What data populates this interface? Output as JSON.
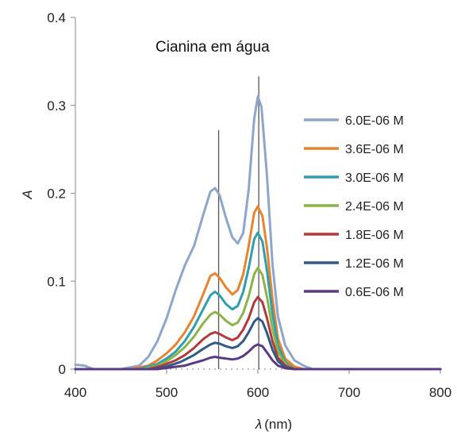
{
  "chart_data": {
    "type": "line",
    "title": "Cianina em água",
    "xlabel": {
      "symbol": "λ",
      "unit": "(nm)"
    },
    "ylabel": "A",
    "xlim": [
      400,
      800
    ],
    "ylim": [
      0,
      0.4
    ],
    "x_ticks": [
      "400",
      "500",
      "600",
      "700",
      "800"
    ],
    "y_ticks": [
      "0",
      "0.1",
      "0.2",
      "0.3",
      "0.4"
    ],
    "grid": false,
    "legend_position": "right",
    "reference_lines": [
      {
        "x": 557,
        "y_top": 0.272
      },
      {
        "x": 601,
        "y_top": 0.333
      }
    ],
    "series": [
      {
        "name": "6.0E-06 M",
        "color": "#8ea6cc",
        "points": [
          [
            400,
            0.005
          ],
          [
            410,
            0.004
          ],
          [
            420,
            0.0
          ],
          [
            450,
            0.0
          ],
          [
            470,
            0.004
          ],
          [
            480,
            0.014
          ],
          [
            490,
            0.032
          ],
          [
            500,
            0.058
          ],
          [
            510,
            0.09
          ],
          [
            520,
            0.118
          ],
          [
            530,
            0.14
          ],
          [
            540,
            0.175
          ],
          [
            548,
            0.202
          ],
          [
            553,
            0.206
          ],
          [
            558,
            0.198
          ],
          [
            565,
            0.172
          ],
          [
            572,
            0.15
          ],
          [
            578,
            0.143
          ],
          [
            584,
            0.155
          ],
          [
            590,
            0.205
          ],
          [
            596,
            0.285
          ],
          [
            600,
            0.31
          ],
          [
            604,
            0.298
          ],
          [
            610,
            0.22
          ],
          [
            616,
            0.12
          ],
          [
            622,
            0.06
          ],
          [
            630,
            0.027
          ],
          [
            640,
            0.01
          ],
          [
            650,
            0.004
          ],
          [
            660,
            0.0
          ],
          [
            800,
            0.0
          ]
        ]
      },
      {
        "name": "3.6E-06 M",
        "color": "#e8832e",
        "points": [
          [
            400,
            0.0
          ],
          [
            460,
            0.0
          ],
          [
            480,
            0.004
          ],
          [
            490,
            0.01
          ],
          [
            500,
            0.018
          ],
          [
            510,
            0.028
          ],
          [
            520,
            0.042
          ],
          [
            530,
            0.06
          ],
          [
            540,
            0.085
          ],
          [
            548,
            0.106
          ],
          [
            553,
            0.109
          ],
          [
            558,
            0.104
          ],
          [
            565,
            0.093
          ],
          [
            572,
            0.085
          ],
          [
            578,
            0.09
          ],
          [
            584,
            0.108
          ],
          [
            590,
            0.14
          ],
          [
            596,
            0.178
          ],
          [
            600,
            0.185
          ],
          [
            605,
            0.174
          ],
          [
            610,
            0.138
          ],
          [
            616,
            0.08
          ],
          [
            622,
            0.035
          ],
          [
            630,
            0.012
          ],
          [
            640,
            0.003
          ],
          [
            650,
            0.0
          ],
          [
            800,
            0.0
          ]
        ]
      },
      {
        "name": "3.0E-06 M",
        "color": "#2e9faf",
        "points": [
          [
            400,
            0.0
          ],
          [
            470,
            0.0
          ],
          [
            490,
            0.006
          ],
          [
            500,
            0.012
          ],
          [
            510,
            0.02
          ],
          [
            520,
            0.032
          ],
          [
            530,
            0.048
          ],
          [
            540,
            0.068
          ],
          [
            548,
            0.084
          ],
          [
            553,
            0.088
          ],
          [
            558,
            0.084
          ],
          [
            565,
            0.074
          ],
          [
            572,
            0.068
          ],
          [
            578,
            0.072
          ],
          [
            584,
            0.088
          ],
          [
            590,
            0.115
          ],
          [
            596,
            0.148
          ],
          [
            600,
            0.155
          ],
          [
            605,
            0.145
          ],
          [
            610,
            0.112
          ],
          [
            616,
            0.063
          ],
          [
            622,
            0.027
          ],
          [
            630,
            0.008
          ],
          [
            640,
            0.0
          ],
          [
            800,
            0.0
          ]
        ]
      },
      {
        "name": "2.4E-06 M",
        "color": "#8db247",
        "points": [
          [
            400,
            0.0
          ],
          [
            475,
            0.0
          ],
          [
            490,
            0.004
          ],
          [
            500,
            0.009
          ],
          [
            510,
            0.016
          ],
          [
            520,
            0.025
          ],
          [
            530,
            0.037
          ],
          [
            540,
            0.052
          ],
          [
            548,
            0.062
          ],
          [
            553,
            0.065
          ],
          [
            558,
            0.062
          ],
          [
            565,
            0.055
          ],
          [
            572,
            0.05
          ],
          [
            578,
            0.053
          ],
          [
            584,
            0.064
          ],
          [
            590,
            0.083
          ],
          [
            596,
            0.108
          ],
          [
            600,
            0.115
          ],
          [
            605,
            0.107
          ],
          [
            610,
            0.082
          ],
          [
            616,
            0.046
          ],
          [
            622,
            0.02
          ],
          [
            630,
            0.006
          ],
          [
            640,
            0.0
          ],
          [
            800,
            0.0
          ]
        ]
      },
      {
        "name": "1.8E-06 M",
        "color": "#b23a3a",
        "points": [
          [
            400,
            0.0
          ],
          [
            480,
            0.0
          ],
          [
            495,
            0.004
          ],
          [
            510,
            0.01
          ],
          [
            520,
            0.016
          ],
          [
            530,
            0.024
          ],
          [
            540,
            0.034
          ],
          [
            548,
            0.04
          ],
          [
            553,
            0.042
          ],
          [
            558,
            0.04
          ],
          [
            565,
            0.036
          ],
          [
            572,
            0.033
          ],
          [
            578,
            0.036
          ],
          [
            584,
            0.045
          ],
          [
            590,
            0.058
          ],
          [
            596,
            0.076
          ],
          [
            600,
            0.082
          ],
          [
            605,
            0.076
          ],
          [
            610,
            0.058
          ],
          [
            616,
            0.032
          ],
          [
            622,
            0.013
          ],
          [
            630,
            0.004
          ],
          [
            640,
            0.0
          ],
          [
            800,
            0.0
          ]
        ]
      },
      {
        "name": "1.2E-06 M",
        "color": "#2f5b86",
        "points": [
          [
            400,
            0.0
          ],
          [
            485,
            0.0
          ],
          [
            500,
            0.003
          ],
          [
            515,
            0.008
          ],
          [
            530,
            0.016
          ],
          [
            540,
            0.023
          ],
          [
            548,
            0.028
          ],
          [
            553,
            0.03
          ],
          [
            558,
            0.029
          ],
          [
            565,
            0.026
          ],
          [
            572,
            0.024
          ],
          [
            578,
            0.026
          ],
          [
            584,
            0.032
          ],
          [
            590,
            0.042
          ],
          [
            596,
            0.054
          ],
          [
            600,
            0.058
          ],
          [
            605,
            0.054
          ],
          [
            610,
            0.041
          ],
          [
            616,
            0.022
          ],
          [
            622,
            0.009
          ],
          [
            630,
            0.002
          ],
          [
            640,
            0.0
          ],
          [
            800,
            0.0
          ]
        ]
      },
      {
        "name": "0.6E-06 M",
        "color": "#5a3a86",
        "points": [
          [
            400,
            0.0
          ],
          [
            490,
            0.0
          ],
          [
            505,
            0.002
          ],
          [
            520,
            0.004
          ],
          [
            530,
            0.007
          ],
          [
            540,
            0.01
          ],
          [
            548,
            0.013
          ],
          [
            553,
            0.014
          ],
          [
            558,
            0.013
          ],
          [
            565,
            0.012
          ],
          [
            572,
            0.011
          ],
          [
            578,
            0.012
          ],
          [
            584,
            0.015
          ],
          [
            590,
            0.02
          ],
          [
            596,
            0.026
          ],
          [
            600,
            0.028
          ],
          [
            605,
            0.026
          ],
          [
            610,
            0.019
          ],
          [
            616,
            0.01
          ],
          [
            622,
            0.004
          ],
          [
            630,
            0.001
          ],
          [
            640,
            0.0
          ],
          [
            800,
            0.0
          ]
        ]
      }
    ]
  }
}
